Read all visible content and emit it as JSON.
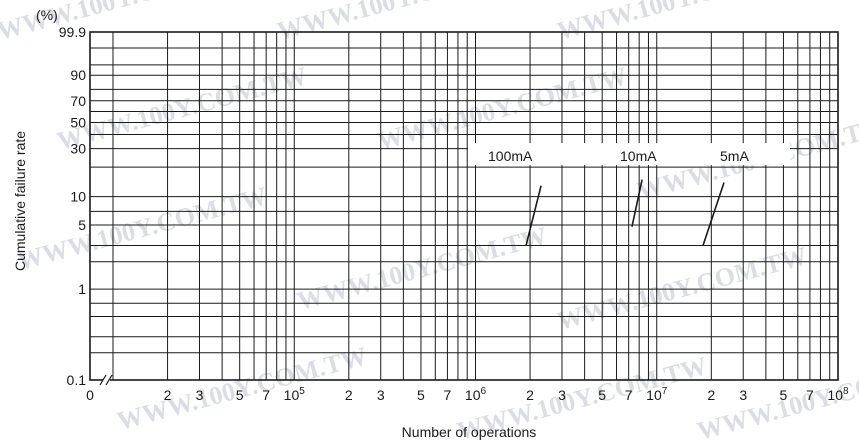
{
  "watermark": "WWW.100Y.COM.TW",
  "colors": {
    "line": "#1a1a1a",
    "background": "#ffffff",
    "watermark": "#d9dde6"
  },
  "chart_data": {
    "type": "line",
    "xlabel": "Number of operations",
    "ylabel": "Cumulative failure rate",
    "yunit": "(%)",
    "x_scale": "log",
    "y_scale": "weibull-probability",
    "xlim": [
      10000,
      100000000
    ],
    "ylim": [
      0.1,
      99.9
    ],
    "grid": true,
    "axis_break": "x",
    "x_ticks": [
      {
        "value": 0,
        "label": "0"
      },
      {
        "value": 20000,
        "label": "2"
      },
      {
        "value": 30000,
        "label": "3"
      },
      {
        "value": 50000,
        "label": "5"
      },
      {
        "value": 70000,
        "label": "7"
      },
      {
        "value": 100000,
        "label": "10",
        "exp": "5"
      },
      {
        "value": 200000,
        "label": "2"
      },
      {
        "value": 300000,
        "label": "3"
      },
      {
        "value": 500000,
        "label": "5"
      },
      {
        "value": 700000,
        "label": "7"
      },
      {
        "value": 1000000,
        "label": "10",
        "exp": "6"
      },
      {
        "value": 2000000,
        "label": "2"
      },
      {
        "value": 3000000,
        "label": "3"
      },
      {
        "value": 5000000,
        "label": "5"
      },
      {
        "value": 7000000,
        "label": "7"
      },
      {
        "value": 10000000,
        "label": "10",
        "exp": "7"
      },
      {
        "value": 20000000,
        "label": "2"
      },
      {
        "value": 30000000,
        "label": "3"
      },
      {
        "value": 50000000,
        "label": "5"
      },
      {
        "value": 70000000,
        "label": "7"
      },
      {
        "value": 100000000,
        "label": "10",
        "exp": "8"
      }
    ],
    "y_ticks": [
      {
        "value": 99.9,
        "label": "99.9"
      },
      {
        "value": 90,
        "label": "90"
      },
      {
        "value": 70,
        "label": "70"
      },
      {
        "value": 50,
        "label": "50"
      },
      {
        "value": 30,
        "label": "30"
      },
      {
        "value": 10,
        "label": "10"
      },
      {
        "value": 5,
        "label": "5"
      },
      {
        "value": 1,
        "label": "1"
      },
      {
        "value": 0.1,
        "label": "0.1"
      }
    ],
    "series": [
      {
        "name": "100mA",
        "x": [
          1900000,
          2300000
        ],
        "y": [
          3.0,
          13.0
        ]
      },
      {
        "name": "10mA",
        "x": [
          7300000,
          8300000
        ],
        "y": [
          4.8,
          15.0
        ]
      },
      {
        "name": "5mA",
        "x": [
          18000000,
          23500000
        ],
        "y": [
          3.0,
          14.0
        ]
      }
    ]
  }
}
